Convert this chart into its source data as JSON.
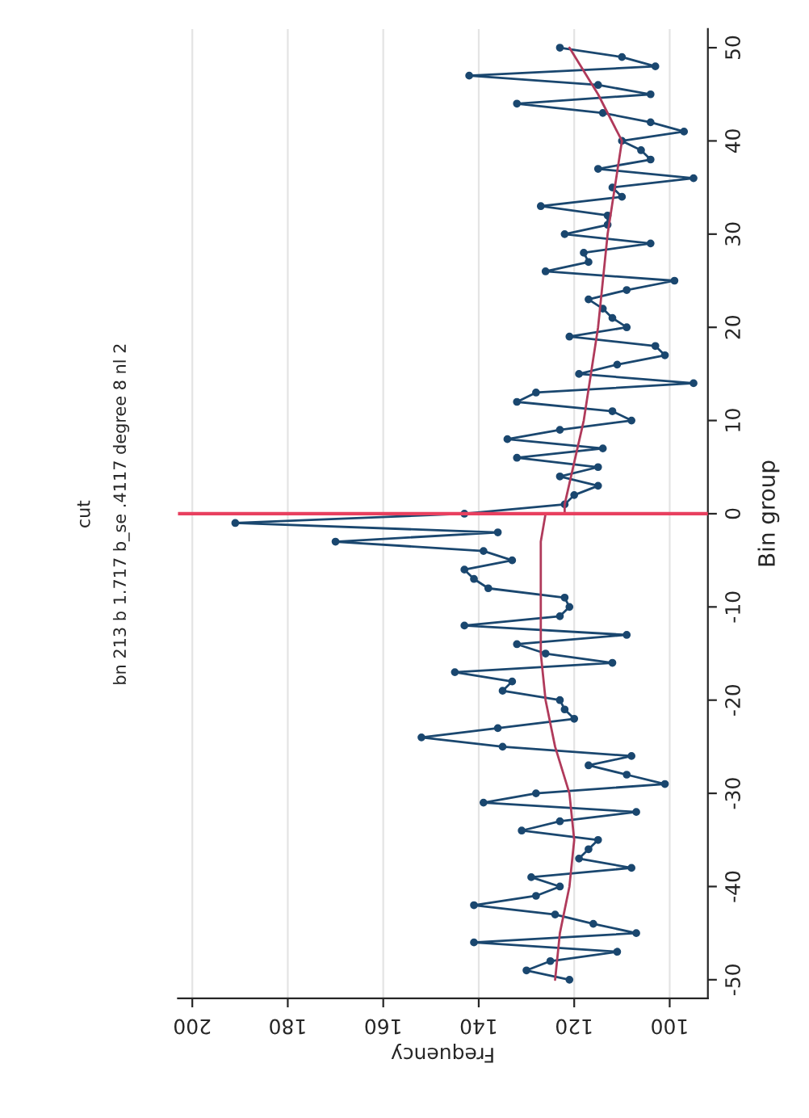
{
  "chart_data": {
    "type": "line",
    "title": "cut",
    "subtitle": "bn 213 b 1.717 b_se .4117 degree 8 nl 2",
    "xlabel": "Frequency",
    "ylabel": "Bin group",
    "xlim": [
      203,
      92
    ],
    "xticks": [
      200,
      180,
      160,
      140,
      120,
      100
    ],
    "ylim": [
      -52,
      52
    ],
    "yticks": [
      -50,
      -40,
      -30,
      -20,
      -10,
      0,
      10,
      20,
      30,
      40,
      50
    ],
    "grid": "x",
    "legend": false,
    "series": [
      {
        "color": "#1a476f",
        "marker": "circle",
        "values": [
          -50,
          -49,
          -48,
          -47,
          -46,
          -45,
          -44,
          -43,
          -42,
          -41,
          -40,
          -39,
          -38,
          -37,
          -36,
          -35,
          -34,
          -33,
          -32,
          -31,
          -30,
          -29,
          -28,
          -27,
          -26,
          -25,
          -24,
          -23,
          -22,
          -21,
          -20,
          -19,
          -18,
          -17,
          -16,
          -15,
          -14,
          -13,
          -12,
          -11,
          -10,
          -9,
          -8,
          -7,
          -6,
          -5,
          -4,
          -3,
          -2,
          -1,
          0,
          1,
          2,
          3,
          4,
          5,
          6,
          7,
          8,
          9,
          10,
          11,
          12,
          13,
          14,
          15,
          16,
          17,
          18,
          19,
          20,
          21,
          22,
          23,
          24,
          25,
          26,
          27,
          28,
          29,
          30,
          31,
          32,
          33,
          34,
          35,
          36,
          37,
          38,
          39,
          40,
          41,
          42,
          43,
          44,
          45,
          46,
          47,
          48,
          49,
          50
        ],
        "x": [
          121,
          130,
          125,
          111,
          141,
          107,
          116,
          124,
          141,
          128,
          123,
          129,
          108,
          119,
          117,
          115,
          131,
          123,
          107,
          139,
          128,
          101,
          109,
          117,
          108,
          135,
          152,
          136,
          120,
          122,
          123,
          135,
          133,
          145,
          112,
          126,
          132,
          109,
          143,
          123,
          121,
          122,
          138,
          141,
          143,
          133,
          139,
          170,
          136,
          191,
          143,
          122,
          120,
          115,
          123,
          115,
          132,
          114,
          134,
          123,
          108,
          112,
          132,
          128,
          95,
          119,
          111,
          101,
          103,
          121,
          109,
          112,
          114,
          117,
          109,
          99,
          126,
          117,
          118,
          104,
          122,
          113,
          113,
          127,
          110,
          112,
          95,
          115,
          104,
          106,
          110,
          97,
          104,
          114,
          132,
          104,
          115,
          142,
          103,
          110,
          123
        ]
      },
      {
        "color": "#b03a5b",
        "marker": "none",
        "values": [
          -50,
          -45,
          -40,
          -35,
          -30,
          -25,
          -20,
          -15,
          -10,
          -6,
          -3,
          0
        ],
        "x": [
          124,
          123,
          121,
          120,
          121,
          124,
          126,
          127,
          127,
          127,
          127,
          126
        ]
      },
      {
        "color": "#b03a5b",
        "marker": "none",
        "values": [
          0,
          1,
          10,
          20,
          30,
          40,
          45,
          50
        ],
        "x": [
          122,
          122,
          118,
          115,
          113,
          110,
          115,
          121
        ]
      }
    ],
    "ref_lines": [
      {
        "axis": "y",
        "value": 0,
        "color": "#e8405f"
      }
    ]
  }
}
